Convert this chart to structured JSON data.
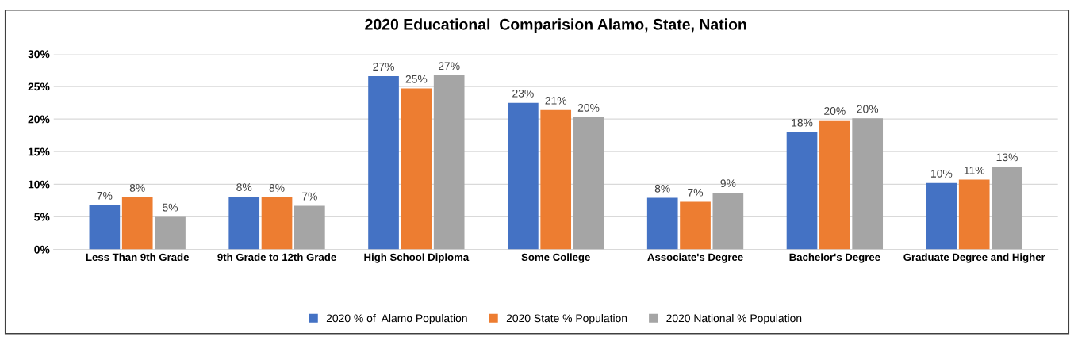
{
  "chart_data": {
    "type": "bar",
    "title": "2020 Educational  Comparision Alamo, State, Nation",
    "categories": [
      "Less Than 9th Grade",
      "9th Grade to 12th Grade",
      "High School Diploma",
      "Some College",
      "Associate's Degree",
      "Bachelor's Degree",
      "Graduate Degree and Higher"
    ],
    "series": [
      {
        "name": "2020 % of  Alamo Population",
        "color": "#4472c4",
        "values": [
          6.8,
          8.1,
          26.6,
          22.5,
          7.9,
          18.0,
          10.2
        ],
        "value_labels": [
          "7%",
          "8%",
          "27%",
          "23%",
          "8%",
          "18%",
          "10%"
        ]
      },
      {
        "name": "2020 State % Population",
        "color": "#ed7d31",
        "values": [
          8.0,
          8.0,
          24.7,
          21.4,
          7.3,
          19.8,
          10.7
        ],
        "value_labels": [
          "8%",
          "8%",
          "25%",
          "21%",
          "7%",
          "20%",
          "11%"
        ]
      },
      {
        "name": "2020 National % Population",
        "color": "#a5a5a5",
        "values": [
          5.0,
          6.7,
          26.7,
          20.3,
          8.7,
          20.1,
          12.7
        ],
        "value_labels": [
          "5%",
          "7%",
          "27%",
          "20%",
          "9%",
          "20%",
          "13%"
        ]
      }
    ],
    "ylim": [
      0,
      30
    ],
    "yticks": [
      {
        "value": 0,
        "label": "0%"
      },
      {
        "value": 5,
        "label": "5%"
      },
      {
        "value": 10,
        "label": "10%"
      },
      {
        "value": 15,
        "label": "15%"
      },
      {
        "value": 20,
        "label": "20%"
      },
      {
        "value": 25,
        "label": "25%"
      },
      {
        "value": 30,
        "label": "30%"
      }
    ],
    "grid": "y",
    "legend": "bottom"
  }
}
